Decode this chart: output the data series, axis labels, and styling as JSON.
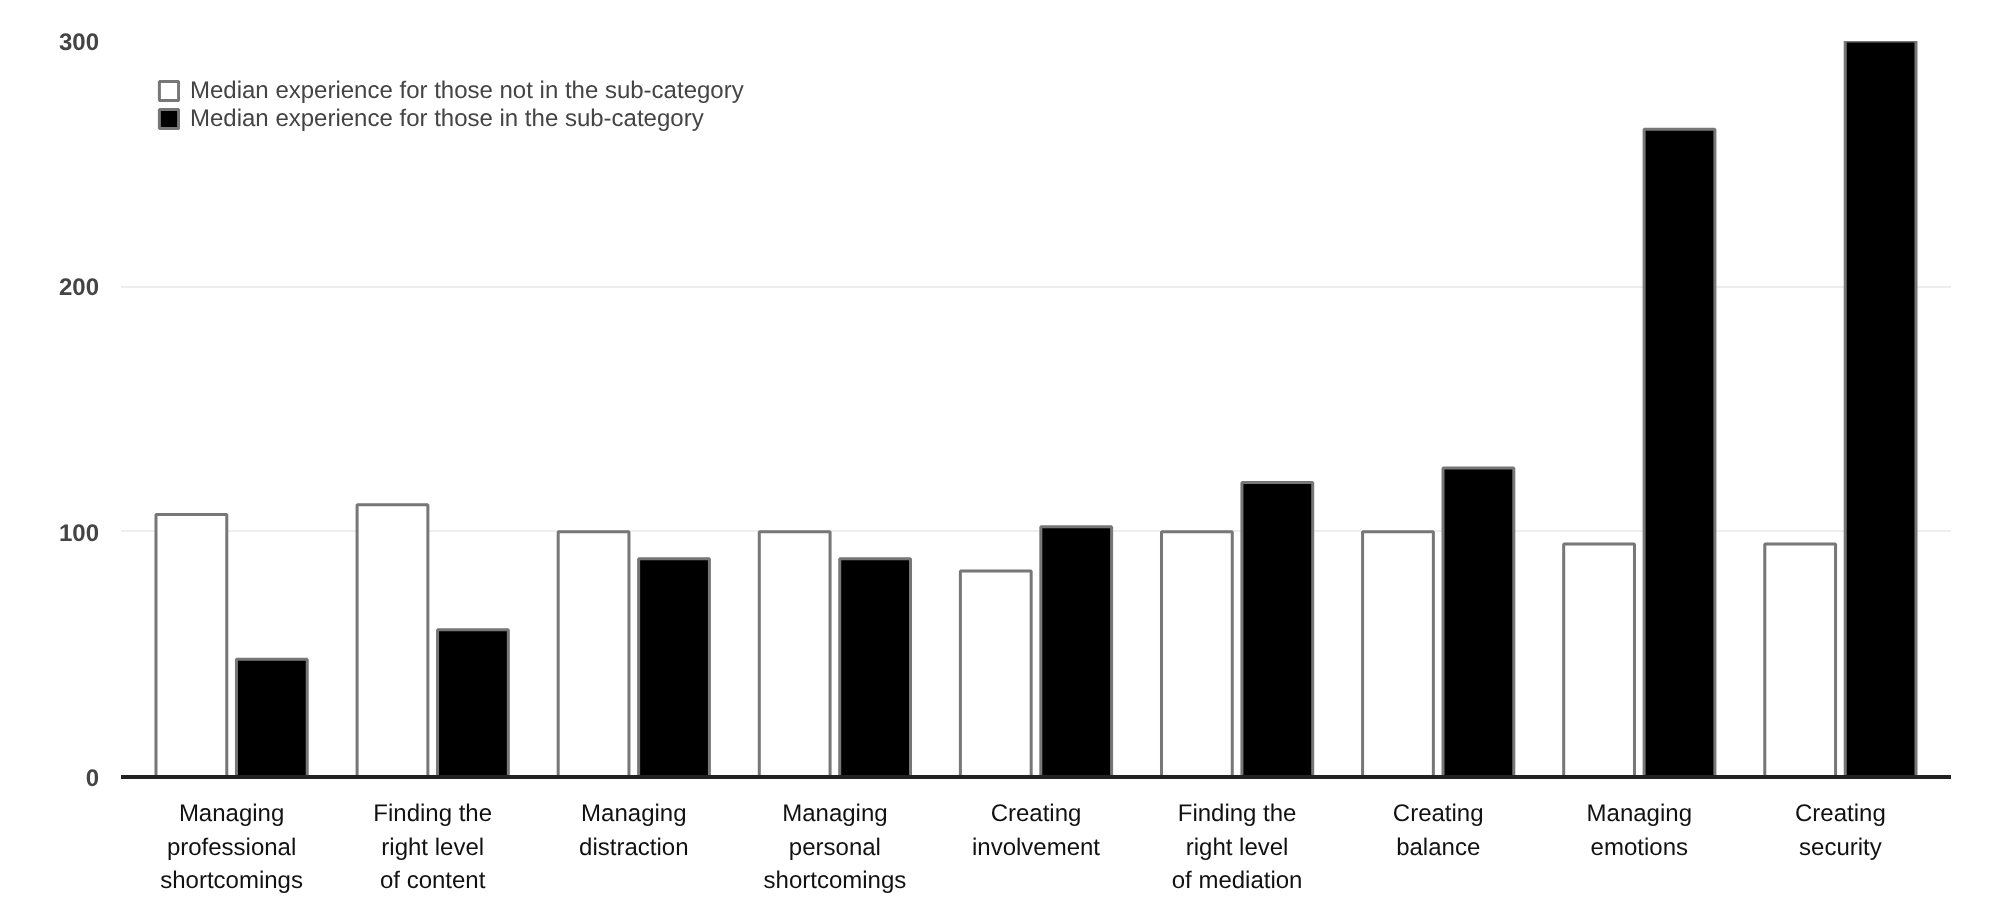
{
  "chart_data": {
    "type": "bar",
    "categories": [
      "Managing\nprofessional\nshortcomings",
      "Finding the\nright level\nof content",
      "Managing\ndistraction",
      "Managing\npersonal\nshortcomings",
      "Creating\ninvolvement",
      "Finding the\nright level\nof mediation",
      "Creating\nbalance",
      "Managing\nemotions",
      "Creating\nsecurity"
    ],
    "series": [
      {
        "name": "Median experience for those not in the sub-category",
        "color": "#ffffff",
        "values": [
          107,
          111,
          100,
          100,
          84,
          100,
          100,
          95,
          95
        ]
      },
      {
        "name": "Median experience for those in the sub-category",
        "color": "#000000",
        "values": [
          48,
          60,
          89,
          89,
          102,
          120,
          126,
          264,
          300
        ]
      }
    ],
    "ylim": [
      0,
      300
    ],
    "yticks": [
      0,
      100,
      200,
      300
    ],
    "grid": "y",
    "legend": "top left"
  }
}
